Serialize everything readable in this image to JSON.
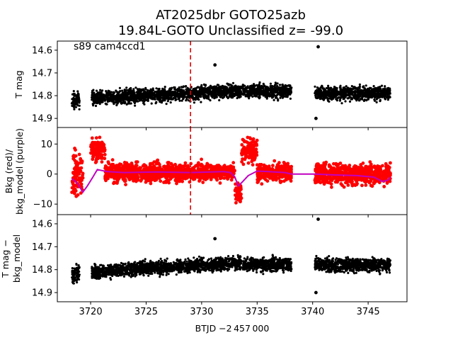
{
  "figure": {
    "title_line1": "AT2025dbr  GOTO25azb",
    "title_line2": "19.84L-GOTO Unclassified z= -99.0",
    "annotation": "s89 cam4ccd1",
    "xlabel": "BTJD −2 457 000"
  },
  "chart_data": [
    {
      "type": "scatter",
      "panel": "top",
      "ylabel": "T mag",
      "y_inverted": true,
      "xlim": [
        3717.0,
        3748.5
      ],
      "ylim": [
        14.94,
        14.56
      ],
      "yticks": [
        14.6,
        14.7,
        14.8,
        14.9
      ],
      "ytick_labels": [
        "14.6",
        "14.7",
        "14.8",
        "14.9"
      ],
      "marker_color": "#000000",
      "segments": [
        {
          "x_start": 3718.3,
          "x_end": 3719.0,
          "y_center": 14.82,
          "y_spread": 0.06
        },
        {
          "x_start": 3720.1,
          "x_end": 3733.6,
          "y_center_start": 14.81,
          "y_center_end": 14.78,
          "y_spread": 0.05
        },
        {
          "x_start": 3733.7,
          "x_end": 3738.1,
          "y_center": 14.78,
          "y_spread": 0.05
        },
        {
          "x_start": 3740.2,
          "x_end": 3747.0,
          "y_center": 14.79,
          "y_spread": 0.05
        }
      ],
      "outliers": [
        {
          "x": 3731.2,
          "y": 14.665
        },
        {
          "x": 3740.5,
          "y": 14.585
        },
        {
          "x": 3740.3,
          "y": 14.9
        }
      ],
      "vline": {
        "x": 3729.0,
        "color": "#e00000",
        "style": "dashed"
      }
    },
    {
      "type": "scatter",
      "panel": "middle",
      "ylabel_line1": "Bkg (red)/",
      "ylabel_line2": "bkg_model (purple)",
      "xlim": [
        3717.0,
        3748.5
      ],
      "ylim": [
        -13.5,
        15.5
      ],
      "yticks": [
        -10,
        0,
        10
      ],
      "ytick_labels": [
        "−10",
        "0",
        "10"
      ],
      "points_color": "#ff0000",
      "model_color": "#c000c0",
      "segments": [
        {
          "x_start": 3718.3,
          "x_end": 3719.3,
          "y_center": 0,
          "y_spread": 12
        },
        {
          "x_start": 3720.0,
          "x_end": 3721.3,
          "y_center": 8,
          "y_spread": 7
        },
        {
          "x_start": 3721.3,
          "x_end": 3733.0,
          "y_center": 0.5,
          "y_spread": 5
        },
        {
          "x_start": 3733.0,
          "x_end": 3733.6,
          "y_center": -6,
          "y_spread": 6
        },
        {
          "x_start": 3733.6,
          "x_end": 3735.0,
          "y_center": 8,
          "y_spread": 7
        },
        {
          "x_start": 3735.0,
          "x_end": 3738.1,
          "y_center": 0.5,
          "y_spread": 5
        },
        {
          "x_start": 3740.2,
          "x_end": 3747.0,
          "y_center": 0,
          "y_spread": 6
        }
      ],
      "model_line": {
        "x": [
          3718.3,
          3718.8,
          3719.3,
          3719.7,
          3720.2,
          3720.6,
          3721.5,
          3723,
          3726,
          3729,
          3732,
          3732.6,
          3733.0,
          3733.3,
          3733.7,
          3734.2,
          3735,
          3736,
          3737.5,
          3738.1,
          3740.2,
          3742,
          3744,
          3745.5,
          3746.3,
          3746.8,
          3747.0
        ],
        "y": [
          -1.5,
          -3,
          -6,
          -4,
          -1,
          1.5,
          0.8,
          0.5,
          0.7,
          0.5,
          0.8,
          0.5,
          -1,
          -4,
          -2.5,
          -0.5,
          1.0,
          0.8,
          0.5,
          0.0,
          0.0,
          -0.3,
          -0.5,
          -1.0,
          -2.5,
          -2.0,
          -1.0
        ]
      },
      "vline": {
        "x": 3729.0,
        "color": "#e00000",
        "style": "dashed"
      }
    },
    {
      "type": "scatter",
      "panel": "bottom",
      "ylabel_line1": "T mag −",
      "ylabel_line2": "bkg_model",
      "y_inverted": true,
      "xlim": [
        3717.0,
        3748.5
      ],
      "ylim": [
        14.94,
        14.56
      ],
      "yticks": [
        14.6,
        14.7,
        14.8,
        14.9
      ],
      "ytick_labels": [
        "14.6",
        "14.7",
        "14.8",
        "14.9"
      ],
      "xticks": [
        3720,
        3725,
        3730,
        3735,
        3740,
        3745
      ],
      "xtick_labels": [
        "3720",
        "3725",
        "3730",
        "3735",
        "3740",
        "3745"
      ],
      "marker_color": "#000000",
      "segments": [
        {
          "x_start": 3718.3,
          "x_end": 3719.0,
          "y_center": 14.82,
          "y_spread": 0.06
        },
        {
          "x_start": 3720.1,
          "x_end": 3733.6,
          "y_center_start": 14.81,
          "y_center_end": 14.77,
          "y_spread": 0.05
        },
        {
          "x_start": 3733.7,
          "x_end": 3738.1,
          "y_center": 14.78,
          "y_spread": 0.05
        },
        {
          "x_start": 3740.2,
          "x_end": 3747.0,
          "y_center": 14.78,
          "y_spread": 0.05
        }
      ],
      "outliers": [
        {
          "x": 3731.2,
          "y": 14.665
        },
        {
          "x": 3740.5,
          "y": 14.58
        },
        {
          "x": 3740.3,
          "y": 14.9
        }
      ]
    }
  ]
}
